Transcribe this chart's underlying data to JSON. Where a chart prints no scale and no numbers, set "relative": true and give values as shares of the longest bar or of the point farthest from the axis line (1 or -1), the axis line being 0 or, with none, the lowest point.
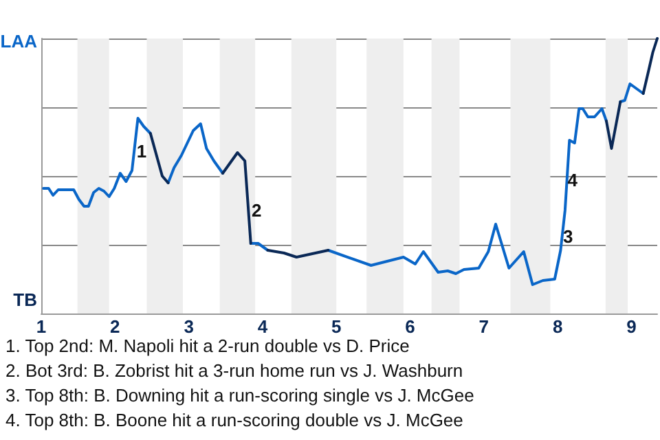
{
  "chart_data": {
    "type": "line",
    "relative": true,
    "grid": "y",
    "legend": false,
    "marker": "none",
    "line_style": "solid",
    "xlabel": null,
    "x": [
      1.03,
      1.1,
      1.16,
      1.23,
      1.44,
      1.51,
      1.58,
      1.64,
      1.71,
      1.78,
      1.85,
      1.92,
      1.99,
      2.07,
      2.15,
      2.23,
      2.31,
      2.39,
      2.48,
      2.64,
      2.72,
      2.8,
      2.9,
      3.06,
      3.16,
      3.24,
      3.34,
      3.46,
      3.66,
      3.76,
      3.84,
      3.94,
      4.07,
      4.29,
      4.46,
      4.89,
      5.47,
      5.91,
      6.07,
      6.18,
      6.38,
      6.51,
      6.62,
      6.73,
      6.93,
      7.06,
      7.16,
      7.34,
      7.54,
      7.66,
      7.8,
      7.96,
      8.04,
      8.1,
      8.16,
      8.23,
      8.29,
      8.34,
      8.41,
      8.5,
      8.6,
      8.66,
      8.73,
      8.85,
      8.91,
      8.98,
      9.16,
      9.23,
      9.29,
      9.35
    ],
    "xlim": [
      1,
      9.35
    ],
    "xticks": [
      1,
      2,
      3,
      4,
      5,
      6,
      7,
      8,
      9
    ],
    "series": [
      {
        "color": "#0a66c8",
        "values": [
          0.455,
          0.455,
          0.43,
          0.45,
          0.45,
          0.415,
          0.39,
          0.39,
          0.44,
          0.455,
          0.445,
          0.425,
          0.455,
          0.51,
          0.48,
          0.52,
          0.71,
          0.68,
          0.655,
          null,
          0.475,
          0.53,
          0.575,
          0.665,
          0.69,
          0.6,
          0.555,
          0.51,
          null,
          null,
          0.255,
          0.255,
          0.23,
          null,
          null,
          0.23,
          0.175,
          0.205,
          0.18,
          0.225,
          0.15,
          0.155,
          0.145,
          0.16,
          0.165,
          0.225,
          0.325,
          0.165,
          0.225,
          0.105,
          0.12,
          0.125,
          0.23,
          0.375,
          0.63,
          0.62,
          0.745,
          0.745,
          0.715,
          0.715,
          0.745,
          0.7,
          null,
          0.77,
          0.775,
          0.835,
          0.8,
          null,
          null,
          null
        ]
      },
      {
        "color": "#0a2856",
        "values": [
          null,
          null,
          null,
          null,
          null,
          null,
          null,
          null,
          null,
          null,
          null,
          null,
          null,
          null,
          null,
          null,
          null,
          null,
          0.655,
          0.5,
          0.475,
          null,
          null,
          null,
          null,
          null,
          null,
          0.51,
          0.585,
          0.555,
          0.255,
          null,
          0.23,
          0.22,
          0.205,
          0.23,
          null,
          null,
          null,
          null,
          null,
          null,
          null,
          null,
          null,
          null,
          null,
          null,
          null,
          null,
          null,
          null,
          null,
          null,
          null,
          null,
          null,
          null,
          null,
          null,
          null,
          0.7,
          0.6,
          0.77,
          null,
          null,
          0.8,
          0.88,
          0.95,
          1
        ]
      }
    ],
    "bands": [
      {
        "axis": "x",
        "from": 1.49,
        "to": 1.92,
        "color": "#eeeeee"
      },
      {
        "axis": "x",
        "from": 2.43,
        "to": 2.92,
        "color": "#eeeeee"
      },
      {
        "axis": "x",
        "from": 3.42,
        "to": 3.9,
        "color": "#eeeeee"
      },
      {
        "axis": "x",
        "from": 4.39,
        "to": 5.0,
        "color": "#eeeeee"
      },
      {
        "axis": "x",
        "from": 5.41,
        "to": 5.91,
        "color": "#eeeeee"
      },
      {
        "axis": "x",
        "from": 6.29,
        "to": 6.67,
        "color": "#eeeeee"
      },
      {
        "axis": "x",
        "from": 7.36,
        "to": 7.9,
        "color": "#eeeeee"
      },
      {
        "axis": "x",
        "from": 8.65,
        "to": 8.95,
        "color": "#eeeeee"
      }
    ],
    "annotations": [
      "LAA",
      "TB",
      {
        "text": "1",
        "x": 2.36,
        "y": 0.59
      },
      {
        "text": "2",
        "x": 3.92,
        "y": 0.375
      },
      {
        "text": "3",
        "x": 8.14,
        "y": 0.28
      },
      {
        "text": "4",
        "x": 8.2,
        "y": 0.485
      },
      "1. Top 2nd: M. Napoli hit a 2-run double vs D. Price",
      "2. Bot 3rd: B. Zobrist hit a 3-run home run vs J. Washburn",
      "3. Top 8th: B. Downing hit a run-scoring single vs J. McGee",
      "4. Top 8th: B. Boone hit a run-scoring double vs J. McGee"
    ]
  }
}
